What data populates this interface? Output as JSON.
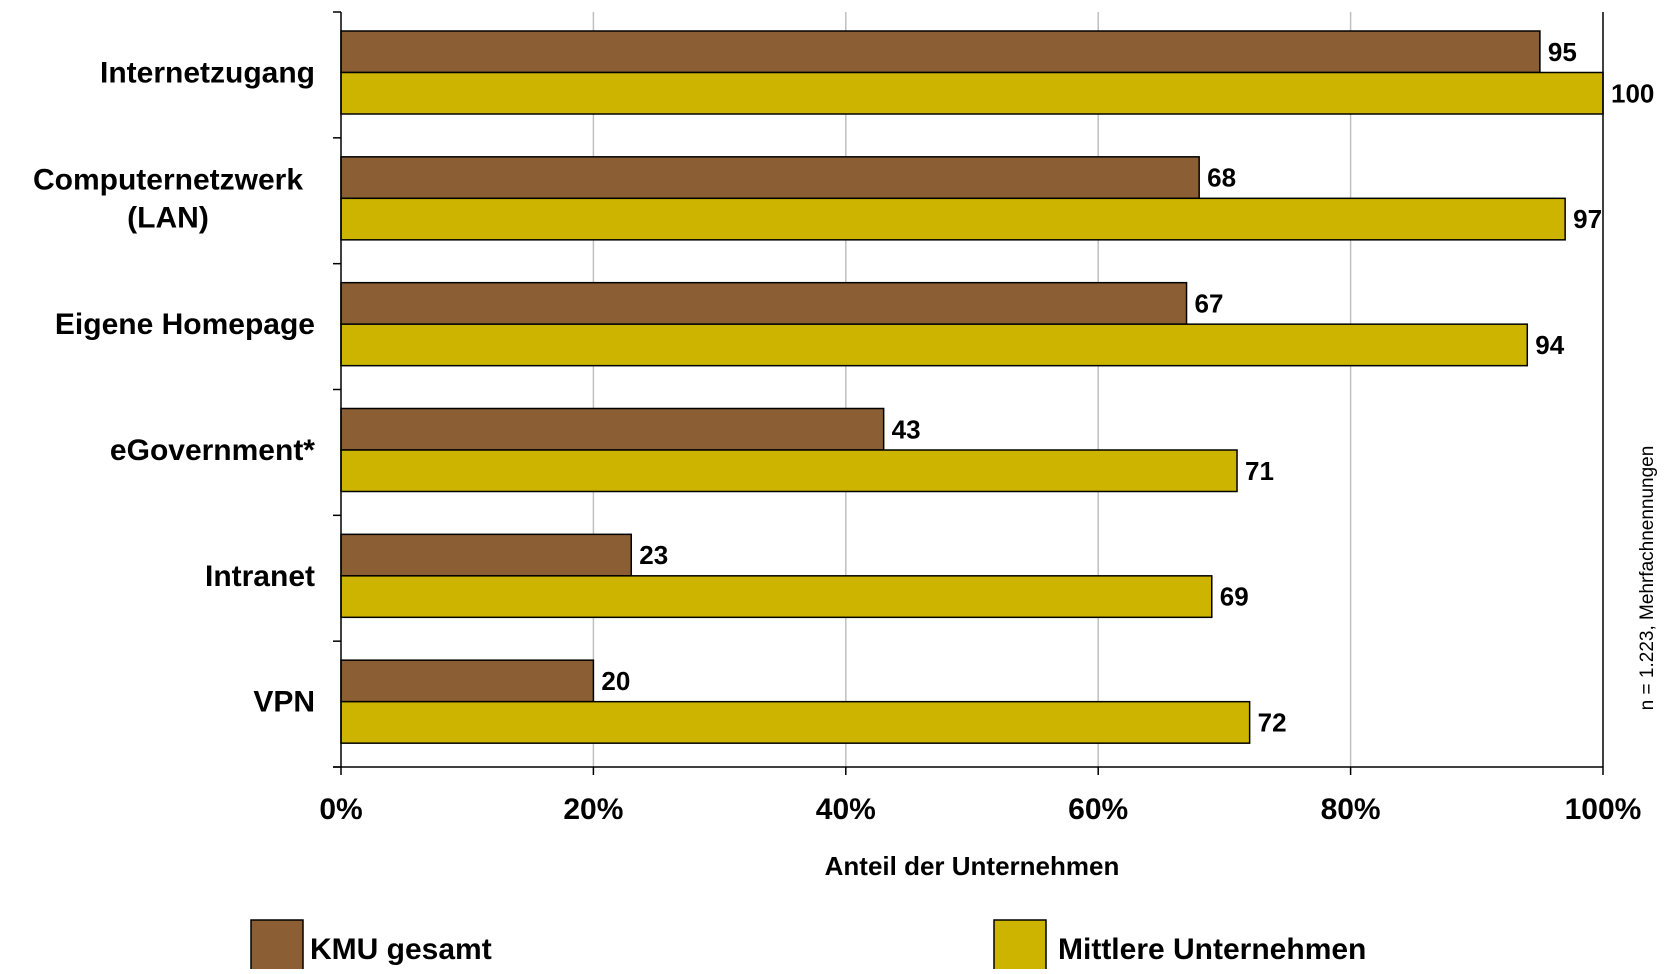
{
  "chart_data": {
    "type": "bar",
    "orientation": "horizontal",
    "categories": [
      [
        "Internetzugang"
      ],
      [
        "Computernetzwerk",
        "(LAN)"
      ],
      [
        "Eigene Homepage"
      ],
      [
        "eGovernment*"
      ],
      [
        "Intranet"
      ],
      [
        "VPN"
      ]
    ],
    "series": [
      {
        "name": "KMU gesamt",
        "color": "#8B5E34",
        "values": [
          95,
          68,
          67,
          43,
          23,
          20
        ]
      },
      {
        "name": "Mittlere Unternehmen",
        "color": "#CCB400",
        "values": [
          100,
          97,
          94,
          71,
          69,
          72
        ]
      }
    ],
    "xlabel": "Anteil der Unternehmen",
    "xlim": [
      0,
      100
    ],
    "xticks": [
      0,
      20,
      40,
      60,
      80,
      100
    ],
    "xtick_labels": [
      "0%",
      "20%",
      "40%",
      "60%",
      "80%",
      "100%"
    ],
    "grid": true,
    "legend_position": "bottom",
    "note": "n = 1.223, Mehrfachnennungen",
    "gridline_color": "#c0c0c0"
  }
}
